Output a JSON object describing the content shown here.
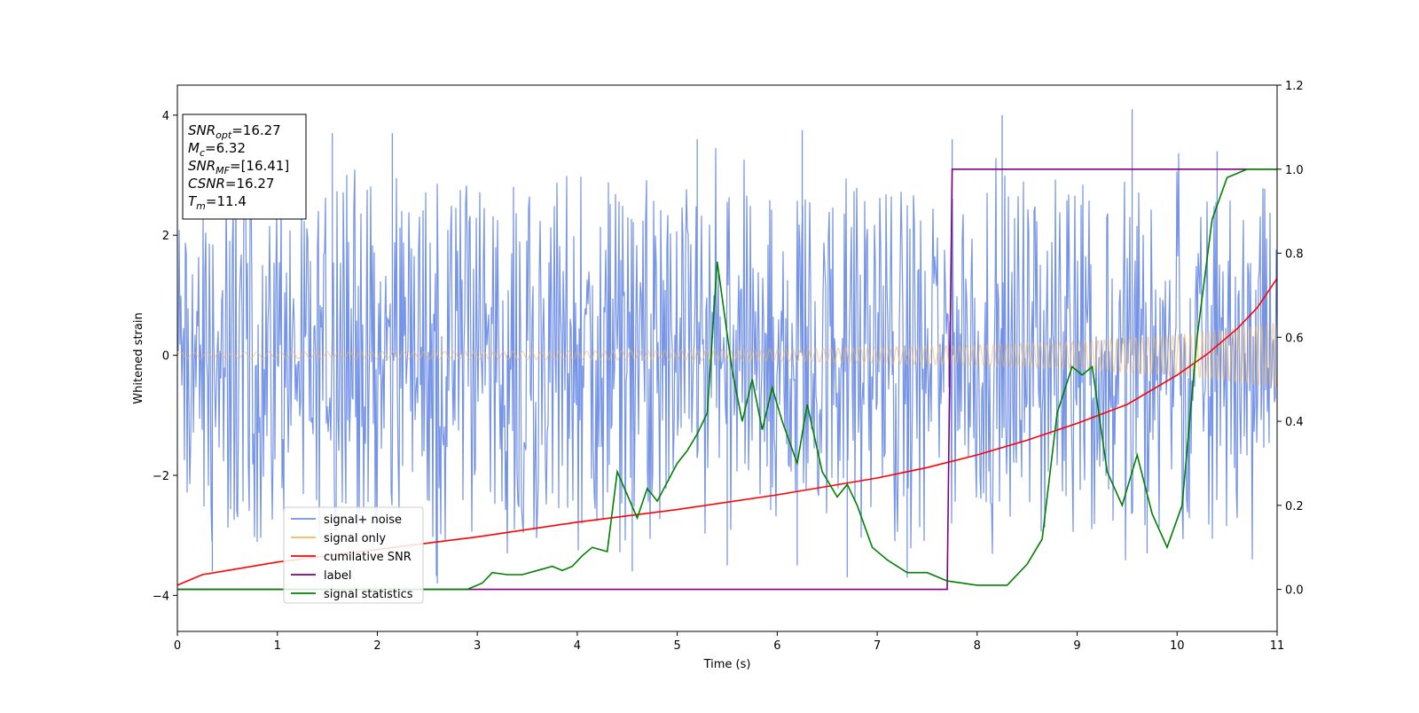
{
  "chart_data": {
    "type": "line",
    "xlabel": "Time (s)",
    "ylabel": "Whitened strain",
    "xlim": [
      0,
      11
    ],
    "ylim_left": [
      -4.6,
      4.5
    ],
    "ylim_right": [
      -0.1,
      1.2
    ],
    "x_ticks": [
      "0",
      "1",
      "2",
      "3",
      "4",
      "5",
      "6",
      "7",
      "8",
      "9",
      "10",
      "11"
    ],
    "y_ticks_left": [
      "4",
      "2",
      "0",
      "−2",
      "−4"
    ],
    "y_ticks_right": [
      "1.2",
      "1.0",
      "0.8",
      "0.6",
      "0.4",
      "0.2",
      "0.0"
    ],
    "legend_placement": "lower-left",
    "colors": {
      "signal_noise": "#6f8ee6",
      "signal_only": "#f5b85c",
      "cumulative_snr": "#ff0000",
      "label": "#800080",
      "signal_statistics": "#008000"
    },
    "annotation_box": [
      {
        "sym": "SNR",
        "sub": "opt",
        "value": "=16.27"
      },
      {
        "sym": "M",
        "sub": "c",
        "value": "=6.32"
      },
      {
        "sym": "SNR",
        "sub": "MF",
        "value": "=[16.41]"
      },
      {
        "sym": "CSNR",
        "sub": "",
        "value": "=16.27"
      },
      {
        "sym": "T",
        "sub": "m",
        "value": "=11.4"
      }
    ],
    "series": [
      {
        "name": "signal+ noise",
        "axis": "left",
        "description_kind": "noise band",
        "base_amplitude": 1.5,
        "max_spikes": [
          [
            1.55,
            3.7
          ],
          [
            2.15,
            3.7
          ],
          [
            5.2,
            3.6
          ],
          [
            6.25,
            3.75
          ],
          [
            7.75,
            3.6
          ],
          [
            8.25,
            4.0
          ],
          [
            9.55,
            4.1
          ],
          [
            10.4,
            3.4
          ]
        ],
        "min_spikes": [
          [
            0.35,
            -3.6
          ],
          [
            2.6,
            -3.8
          ],
          [
            3.3,
            -3.3
          ],
          [
            4.55,
            -3.6
          ],
          [
            5.5,
            -3.5
          ],
          [
            6.2,
            -3.5
          ],
          [
            6.7,
            -3.7
          ],
          [
            7.3,
            -3.7
          ],
          [
            9.7,
            -3.3
          ]
        ]
      },
      {
        "name": "signal only",
        "axis": "left",
        "envelope": [
          [
            0,
            0.05
          ],
          [
            2,
            0.06
          ],
          [
            4,
            0.07
          ],
          [
            6,
            0.1
          ],
          [
            8,
            0.17
          ],
          [
            9,
            0.23
          ],
          [
            10,
            0.34
          ],
          [
            10.5,
            0.43
          ],
          [
            11,
            0.55
          ]
        ]
      },
      {
        "name": "cumilative SNR",
        "axis": "right",
        "points": [
          [
            0,
            0.01
          ],
          [
            0.25,
            0.035
          ],
          [
            0.5,
            0.045
          ],
          [
            1,
            0.065
          ],
          [
            2,
            0.095
          ],
          [
            3,
            0.125
          ],
          [
            4,
            0.16
          ],
          [
            5,
            0.19
          ],
          [
            6,
            0.225
          ],
          [
            7,
            0.265
          ],
          [
            7.5,
            0.29
          ],
          [
            8,
            0.32
          ],
          [
            8.5,
            0.355
          ],
          [
            9,
            0.395
          ],
          [
            9.5,
            0.44
          ],
          [
            10,
            0.51
          ],
          [
            10.3,
            0.56
          ],
          [
            10.6,
            0.62
          ],
          [
            10.8,
            0.67
          ],
          [
            11,
            0.74
          ]
        ]
      },
      {
        "name": "label",
        "axis": "right",
        "points": [
          [
            0,
            0.0
          ],
          [
            7.7,
            0.0
          ],
          [
            7.75,
            1.0
          ],
          [
            11,
            1.0
          ]
        ]
      },
      {
        "name": "signal statistics",
        "axis": "right",
        "points": [
          [
            0,
            0.0
          ],
          [
            2.9,
            0.0
          ],
          [
            3.05,
            0.015
          ],
          [
            3.15,
            0.04
          ],
          [
            3.3,
            0.035
          ],
          [
            3.45,
            0.035
          ],
          [
            3.6,
            0.045
          ],
          [
            3.75,
            0.055
          ],
          [
            3.85,
            0.045
          ],
          [
            3.95,
            0.055
          ],
          [
            4.05,
            0.08
          ],
          [
            4.15,
            0.1
          ],
          [
            4.3,
            0.09
          ],
          [
            4.4,
            0.28
          ],
          [
            4.6,
            0.17
          ],
          [
            4.7,
            0.24
          ],
          [
            4.8,
            0.21
          ],
          [
            5.0,
            0.3
          ],
          [
            5.1,
            0.33
          ],
          [
            5.2,
            0.37
          ],
          [
            5.3,
            0.42
          ],
          [
            5.4,
            0.78
          ],
          [
            5.55,
            0.52
          ],
          [
            5.65,
            0.4
          ],
          [
            5.75,
            0.5
          ],
          [
            5.85,
            0.38
          ],
          [
            5.95,
            0.48
          ],
          [
            6.05,
            0.4
          ],
          [
            6.2,
            0.3
          ],
          [
            6.3,
            0.44
          ],
          [
            6.45,
            0.28
          ],
          [
            6.6,
            0.22
          ],
          [
            6.7,
            0.25
          ],
          [
            6.8,
            0.2
          ],
          [
            6.95,
            0.1
          ],
          [
            7.1,
            0.07
          ],
          [
            7.3,
            0.04
          ],
          [
            7.5,
            0.04
          ],
          [
            7.7,
            0.02
          ],
          [
            8.0,
            0.01
          ],
          [
            8.3,
            0.01
          ],
          [
            8.5,
            0.06
          ],
          [
            8.65,
            0.12
          ],
          [
            8.8,
            0.42
          ],
          [
            8.95,
            0.53
          ],
          [
            9.05,
            0.51
          ],
          [
            9.15,
            0.53
          ],
          [
            9.3,
            0.28
          ],
          [
            9.45,
            0.2
          ],
          [
            9.6,
            0.32
          ],
          [
            9.75,
            0.18
          ],
          [
            9.9,
            0.1
          ],
          [
            10.05,
            0.2
          ],
          [
            10.2,
            0.6
          ],
          [
            10.35,
            0.88
          ],
          [
            10.5,
            0.98
          ],
          [
            10.7,
            1.0
          ],
          [
            11,
            1.0
          ]
        ]
      }
    ]
  }
}
